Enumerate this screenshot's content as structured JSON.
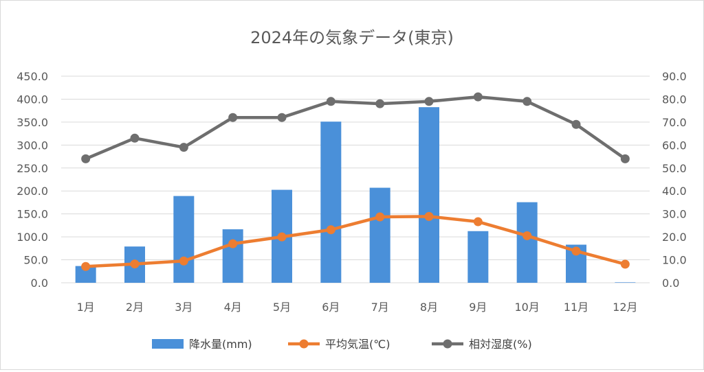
{
  "chart_data": {
    "type": "bar+line",
    "title": "2024年の気象データ(東京)",
    "categories": [
      "1月",
      "2月",
      "3月",
      "4月",
      "5月",
      "6月",
      "7月",
      "8月",
      "9月",
      "10月",
      "11月",
      "12月"
    ],
    "series": [
      {
        "name": "降水量(mm)",
        "kind": "bar",
        "axis": "left",
        "color": "#4A90D9",
        "values": [
          36.5,
          79.0,
          189.0,
          116.5,
          202.5,
          351.0,
          207.0,
          382.5,
          112.5,
          175.5,
          83.0,
          1.0
        ]
      },
      {
        "name": "平均気温(℃)",
        "kind": "line",
        "axis": "right",
        "color": "#ED7D31",
        "values": [
          7.1,
          8.2,
          9.5,
          17.0,
          20.0,
          23.1,
          28.7,
          28.9,
          26.6,
          20.5,
          13.8,
          8.1
        ]
      },
      {
        "name": "相対湿度(%)",
        "kind": "line",
        "axis": "right",
        "color": "#6E6E6E",
        "values": [
          54,
          63,
          59,
          72,
          72,
          79,
          78,
          79,
          81,
          79,
          69,
          54
        ]
      }
    ],
    "yleft": {
      "min": 0,
      "max": 450,
      "step": 50,
      "decimals": 1
    },
    "yright": {
      "min": 0,
      "max": 90,
      "step": 10,
      "decimals": 1
    },
    "grid": true,
    "legend_position": "bottom"
  }
}
